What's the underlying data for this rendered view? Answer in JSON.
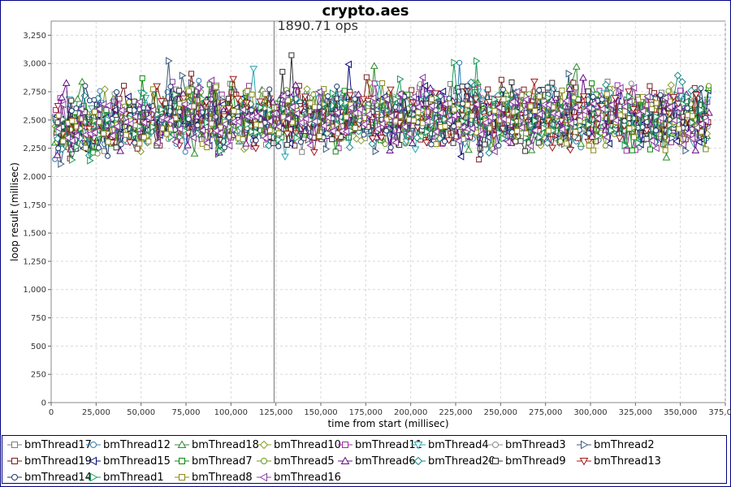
{
  "chart_data": {
    "type": "line",
    "title": "crypto.aes",
    "xlabel": "time from start (millisec)",
    "ylabel": "loop result (millisec)",
    "xlim": [
      0,
      375000
    ],
    "ylim": [
      0,
      3375
    ],
    "x_ticks": [
      "0",
      "25,000",
      "50,000",
      "75,000",
      "100,000",
      "125,000",
      "150,000",
      "175,000",
      "200,000",
      "225,000",
      "250,000",
      "275,000",
      "300,000",
      "325,000",
      "350,000",
      "375,000"
    ],
    "y_ticks": [
      "0",
      "250",
      "500",
      "750",
      "1,000",
      "1,250",
      "1,500",
      "1,750",
      "2,000",
      "2,250",
      "2,500",
      "2,750",
      "3,000",
      "3,250"
    ],
    "x_tick_values": [
      0,
      25000,
      50000,
      75000,
      100000,
      125000,
      150000,
      175000,
      200000,
      225000,
      250000,
      275000,
      300000,
      325000,
      350000,
      375000
    ],
    "y_tick_values": [
      0,
      250,
      500,
      750,
      1000,
      1250,
      1500,
      1750,
      2000,
      2250,
      2500,
      2750,
      3000,
      3250
    ],
    "grid": true,
    "legend_position": "bottom",
    "annotation": {
      "text": "1890.71 ops",
      "x": 124000
    },
    "series_profile": {
      "x_start": 2000,
      "x_end": 366000,
      "x_step": 2500,
      "warmup_end_x": 60000,
      "warmup_mean": 2400,
      "steady_mean": 2530,
      "spread": 200,
      "min_value": 2020,
      "max_value": 3160
    },
    "series": [
      {
        "name": "bmThread17",
        "color": "#7f7f7f",
        "marker": "square"
      },
      {
        "name": "bmThread12",
        "color": "#2e7fb8",
        "marker": "circle"
      },
      {
        "name": "bmThread18",
        "color": "#2e8b2e",
        "marker": "triangle-up"
      },
      {
        "name": "bmThread10",
        "color": "#8a9a2a",
        "marker": "diamond"
      },
      {
        "name": "bmThread11",
        "color": "#9b2fa0",
        "marker": "square"
      },
      {
        "name": "bmThread4",
        "color": "#2aa7b0",
        "marker": "triangle-down"
      },
      {
        "name": "bmThread3",
        "color": "#8c8c8c",
        "marker": "circle"
      },
      {
        "name": "bmThread2",
        "color": "#3a5a7a",
        "marker": "triangle-right"
      },
      {
        "name": "bmThread19",
        "color": "#7a1f1f",
        "marker": "square"
      },
      {
        "name": "bmThread15",
        "color": "#0a0a7a",
        "marker": "triangle-left"
      },
      {
        "name": "bmThread7",
        "color": "#0a8a0a",
        "marker": "square"
      },
      {
        "name": "bmThread5",
        "color": "#6a9a1a",
        "marker": "circle"
      },
      {
        "name": "bmThread6",
        "color": "#6a0a8a",
        "marker": "triangle-up"
      },
      {
        "name": "bmThread20",
        "color": "#1a8a8a",
        "marker": "diamond"
      },
      {
        "name": "bmThread9",
        "color": "#333333",
        "marker": "square"
      },
      {
        "name": "bmThread13",
        "color": "#a01a1a",
        "marker": "triangle-down"
      },
      {
        "name": "bmThread14",
        "color": "#1a3a6a",
        "marker": "circle"
      },
      {
        "name": "bmThread1",
        "color": "#1a9a5a",
        "marker": "triangle-right"
      },
      {
        "name": "bmThread8",
        "color": "#8a8a1a",
        "marker": "square"
      },
      {
        "name": "bmThread16",
        "color": "#8a3aa0",
        "marker": "triangle-left"
      }
    ]
  }
}
